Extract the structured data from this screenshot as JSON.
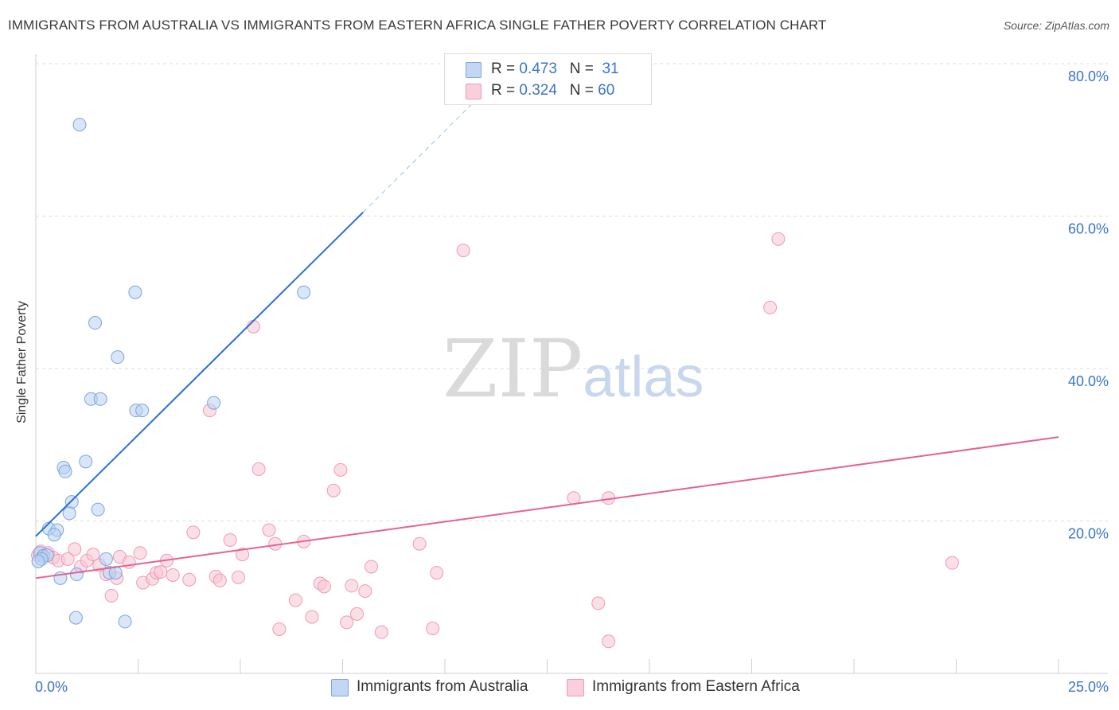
{
  "header": {
    "title": "IMMIGRANTS FROM AUSTRALIA VS IMMIGRANTS FROM EASTERN AFRICA SINGLE FATHER POVERTY CORRELATION CHART",
    "source": "Source: ZipAtlas.com"
  },
  "watermark": {
    "zip": "ZIP",
    "atlas": "atlas"
  },
  "legend": {
    "australia": {
      "r_label": "R =",
      "r_value": "0.473",
      "n_label": "N =",
      "n_value": "31"
    },
    "eastern_africa": {
      "r_label": "R =",
      "r_value": "0.324",
      "n_label": "N =",
      "n_value": "60"
    }
  },
  "bottom_legend": {
    "australia": "Immigrants from Australia",
    "eastern_africa": "Immigrants from Eastern Africa"
  },
  "colors": {
    "australia_fill": "#b9d1f2",
    "australia_stroke": "#7aa5dd",
    "australia_line": "#2a6fd1",
    "eastern_africa_fill": "#f8c4d4",
    "eastern_africa_stroke": "#ee9ab4",
    "eastern_africa_line": "#e4638f",
    "tick_label": "#3b73c9",
    "grid": "#dddddd"
  },
  "chart_data": {
    "type": "scatter",
    "title": "IMMIGRANTS FROM AUSTRALIA VS IMMIGRANTS FROM EASTERN AFRICA SINGLE FATHER POVERTY CORRELATION CHART",
    "xlabel": "",
    "ylabel": "Single Father Poverty",
    "xlim": [
      0,
      25
    ],
    "ylim": [
      0,
      80
    ],
    "x_tick_labels": [
      "0.0%",
      "25.0%"
    ],
    "y_ticks": [
      20,
      40,
      60,
      80
    ],
    "y_tick_labels": [
      "20.0%",
      "40.0%",
      "60.0%",
      "80.0%"
    ],
    "grid": true,
    "legend_position": "top-center",
    "series": [
      {
        "name": "Immigrants from Australia",
        "R": 0.473,
        "N": 31,
        "trend": {
          "x": [
            0,
            8.0
          ],
          "y": [
            18.0,
            60.5
          ],
          "extended_x": [
            8.0,
            10.9
          ],
          "extended_y": [
            60.5,
            76.0
          ]
        },
        "points": [
          [
            1.07,
            72.0
          ],
          [
            2.43,
            50.0
          ],
          [
            6.55,
            50.0
          ],
          [
            1.45,
            46.0
          ],
          [
            2.0,
            41.5
          ],
          [
            1.35,
            36.0
          ],
          [
            1.58,
            36.0
          ],
          [
            4.35,
            35.5
          ],
          [
            2.45,
            34.5
          ],
          [
            2.6,
            34.5
          ],
          [
            1.22,
            27.8
          ],
          [
            0.68,
            27.0
          ],
          [
            0.72,
            26.5
          ],
          [
            0.88,
            22.5
          ],
          [
            1.52,
            21.5
          ],
          [
            0.82,
            21.0
          ],
          [
            0.32,
            19.0
          ],
          [
            0.52,
            18.8
          ],
          [
            0.45,
            18.2
          ],
          [
            0.1,
            15.8
          ],
          [
            0.18,
            15.4
          ],
          [
            0.28,
            15.5
          ],
          [
            0.14,
            15.0
          ],
          [
            0.06,
            14.7
          ],
          [
            1.72,
            15.0
          ],
          [
            1.8,
            13.2
          ],
          [
            1.95,
            13.2
          ],
          [
            0.6,
            12.5
          ],
          [
            1.0,
            13.0
          ],
          [
            0.98,
            7.3
          ],
          [
            2.18,
            6.8
          ]
        ]
      },
      {
        "name": "Immigrants from Eastern Africa",
        "R": 0.324,
        "N": 60,
        "trend": {
          "x": [
            0,
            25
          ],
          "y": [
            12.5,
            31.0
          ]
        },
        "points": [
          [
            0.05,
            15.5
          ],
          [
            0.12,
            16.0
          ],
          [
            0.3,
            15.8
          ],
          [
            0.42,
            15.2
          ],
          [
            0.55,
            14.8
          ],
          [
            0.78,
            15.0
          ],
          [
            0.95,
            16.3
          ],
          [
            1.1,
            14.0
          ],
          [
            1.25,
            14.8
          ],
          [
            1.4,
            15.6
          ],
          [
            1.55,
            14.2
          ],
          [
            1.72,
            13.0
          ],
          [
            1.85,
            10.2
          ],
          [
            1.98,
            12.5
          ],
          [
            2.05,
            15.3
          ],
          [
            2.28,
            14.6
          ],
          [
            2.55,
            15.8
          ],
          [
            2.62,
            11.9
          ],
          [
            2.85,
            12.4
          ],
          [
            2.95,
            13.2
          ],
          [
            3.05,
            13.3
          ],
          [
            3.2,
            14.8
          ],
          [
            3.35,
            12.9
          ],
          [
            3.75,
            12.3
          ],
          [
            3.85,
            18.5
          ],
          [
            4.25,
            34.5
          ],
          [
            4.4,
            12.7
          ],
          [
            4.5,
            12.2
          ],
          [
            4.75,
            17.5
          ],
          [
            4.95,
            12.6
          ],
          [
            5.05,
            15.6
          ],
          [
            5.32,
            45.5
          ],
          [
            5.45,
            26.8
          ],
          [
            5.7,
            18.8
          ],
          [
            5.85,
            17.0
          ],
          [
            5.95,
            5.8
          ],
          [
            6.35,
            9.6
          ],
          [
            6.55,
            17.3
          ],
          [
            6.75,
            7.4
          ],
          [
            6.95,
            11.8
          ],
          [
            7.05,
            11.4
          ],
          [
            7.28,
            24.0
          ],
          [
            7.45,
            26.7
          ],
          [
            7.6,
            6.7
          ],
          [
            7.72,
            11.5
          ],
          [
            7.85,
            7.8
          ],
          [
            8.05,
            10.8
          ],
          [
            8.2,
            14.0
          ],
          [
            8.45,
            5.4
          ],
          [
            9.38,
            17.0
          ],
          [
            9.7,
            5.9
          ],
          [
            9.8,
            13.2
          ],
          [
            10.45,
            55.5
          ],
          [
            13.15,
            23.0
          ],
          [
            13.75,
            9.2
          ],
          [
            14.0,
            23.0
          ],
          [
            14.0,
            4.2
          ],
          [
            17.95,
            48.0
          ],
          [
            18.15,
            57.0
          ],
          [
            22.4,
            14.5
          ]
        ]
      }
    ]
  }
}
